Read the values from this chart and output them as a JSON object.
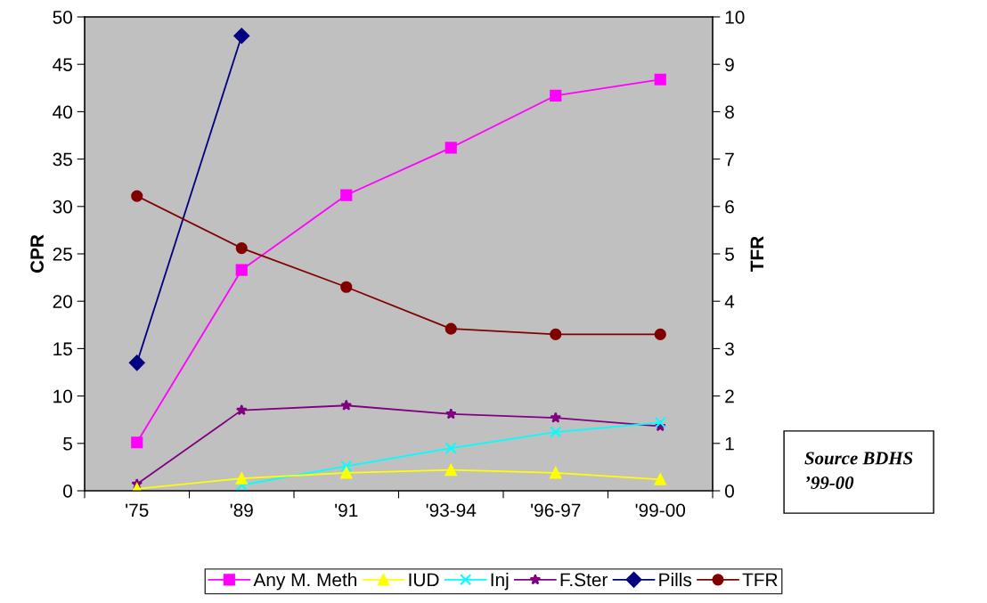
{
  "chart_data": {
    "type": "line",
    "ylabel": "CPR",
    "y2label": "TFR",
    "categories": [
      "'75",
      "'89",
      "'91",
      "'93-94",
      "'96-97",
      "'99-00"
    ],
    "series": [
      {
        "name": "Any M. Meth",
        "color": "#ff00ff",
        "marker": "square",
        "values": [
          5.1,
          23.3,
          31.2,
          36.2,
          41.7,
          43.4
        ]
      },
      {
        "name": "IUD",
        "color": "#ffff00",
        "marker": "triangle",
        "values": [
          0.2,
          1.3,
          1.9,
          2.2,
          1.9,
          1.2
        ]
      },
      {
        "name": "Inj",
        "color": "#00ffff",
        "marker": "cross",
        "values": [
          null,
          0.6,
          2.6,
          4.5,
          6.2,
          7.2
        ]
      },
      {
        "name": "F.Ster",
        "color": "#800080",
        "marker": "star",
        "values": [
          0.7,
          8.5,
          9.0,
          8.1,
          7.7,
          6.8
        ]
      },
      {
        "name": "Pills",
        "color": "#000080",
        "marker": "diamond",
        "values": [
          13.5,
          48,
          null,
          null,
          null,
          null
        ]
      },
      {
        "name": "TFR",
        "color": "#800000",
        "marker": "circle",
        "axis": "y2",
        "values": [
          6.22,
          5.12,
          4.3,
          3.42,
          3.3,
          3.3
        ]
      }
    ],
    "ylim": [
      0,
      50
    ],
    "yticks": [
      0,
      5,
      10,
      15,
      20,
      25,
      30,
      35,
      40,
      45,
      50
    ],
    "y2lim": [
      0,
      10
    ],
    "y2ticks": [
      0,
      1,
      2,
      3,
      4,
      5,
      6,
      7,
      8,
      9,
      10
    ],
    "grid": false,
    "legend": "bottom",
    "line_style": "solid",
    "annotations": [
      "Source BDHS\n’99-00"
    ]
  }
}
